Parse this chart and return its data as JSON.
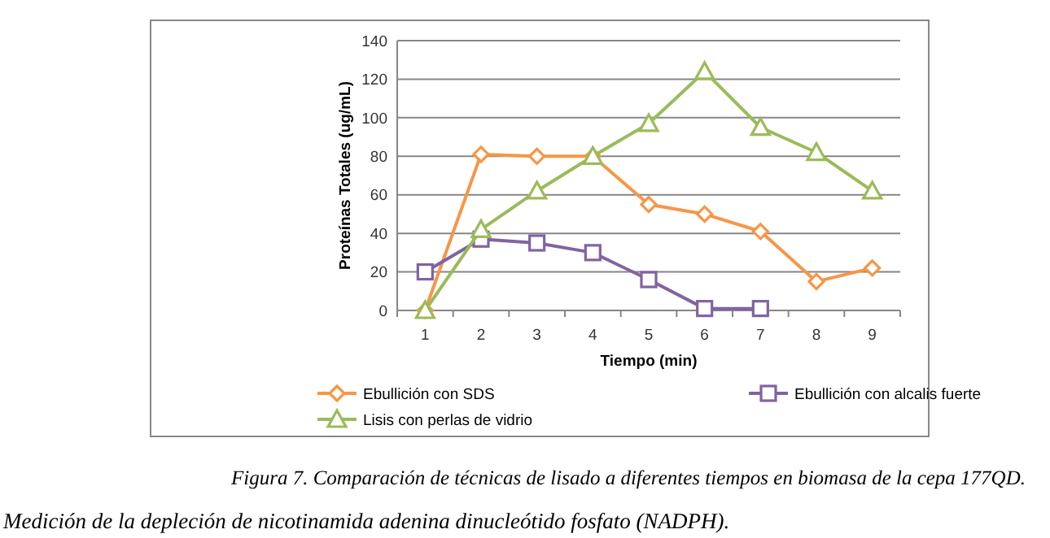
{
  "chart_data": {
    "type": "line",
    "xlabel": "Tiempo (min)",
    "ylabel": "Proteínas Totales (ug/mL)",
    "categories": [
      "1",
      "2",
      "3",
      "4",
      "5",
      "6",
      "7",
      "8",
      "9"
    ],
    "ylim": [
      0,
      140
    ],
    "yticks": [
      0,
      20,
      40,
      60,
      80,
      100,
      120,
      140
    ],
    "grid": "y",
    "legend": "bottom",
    "series": [
      {
        "name": "Ebullición con SDS",
        "color": "#f79646",
        "marker": "diamond",
        "values": [
          0,
          81,
          80,
          80,
          55,
          50,
          41,
          15,
          22
        ]
      },
      {
        "name": "Ebullición con alcalis fuerte",
        "color": "#8064a2",
        "marker": "square",
        "values": [
          20,
          37,
          35,
          30,
          16,
          1,
          1,
          null,
          null
        ]
      },
      {
        "name": "Lisis con perlas de vidrio",
        "color": "#9bbb59",
        "marker": "triangle",
        "values": [
          0,
          42,
          62,
          80,
          97,
          124,
          95,
          82,
          62
        ]
      }
    ],
    "annotations": [
      "Figura 7. Comparación de técnicas de lisado a diferentes tiempos en biomasa de la cepa 177QD.",
      "Medición de la depleción de nicotinamida adenina dinucleótido fosfato (NADPH)."
    ]
  }
}
